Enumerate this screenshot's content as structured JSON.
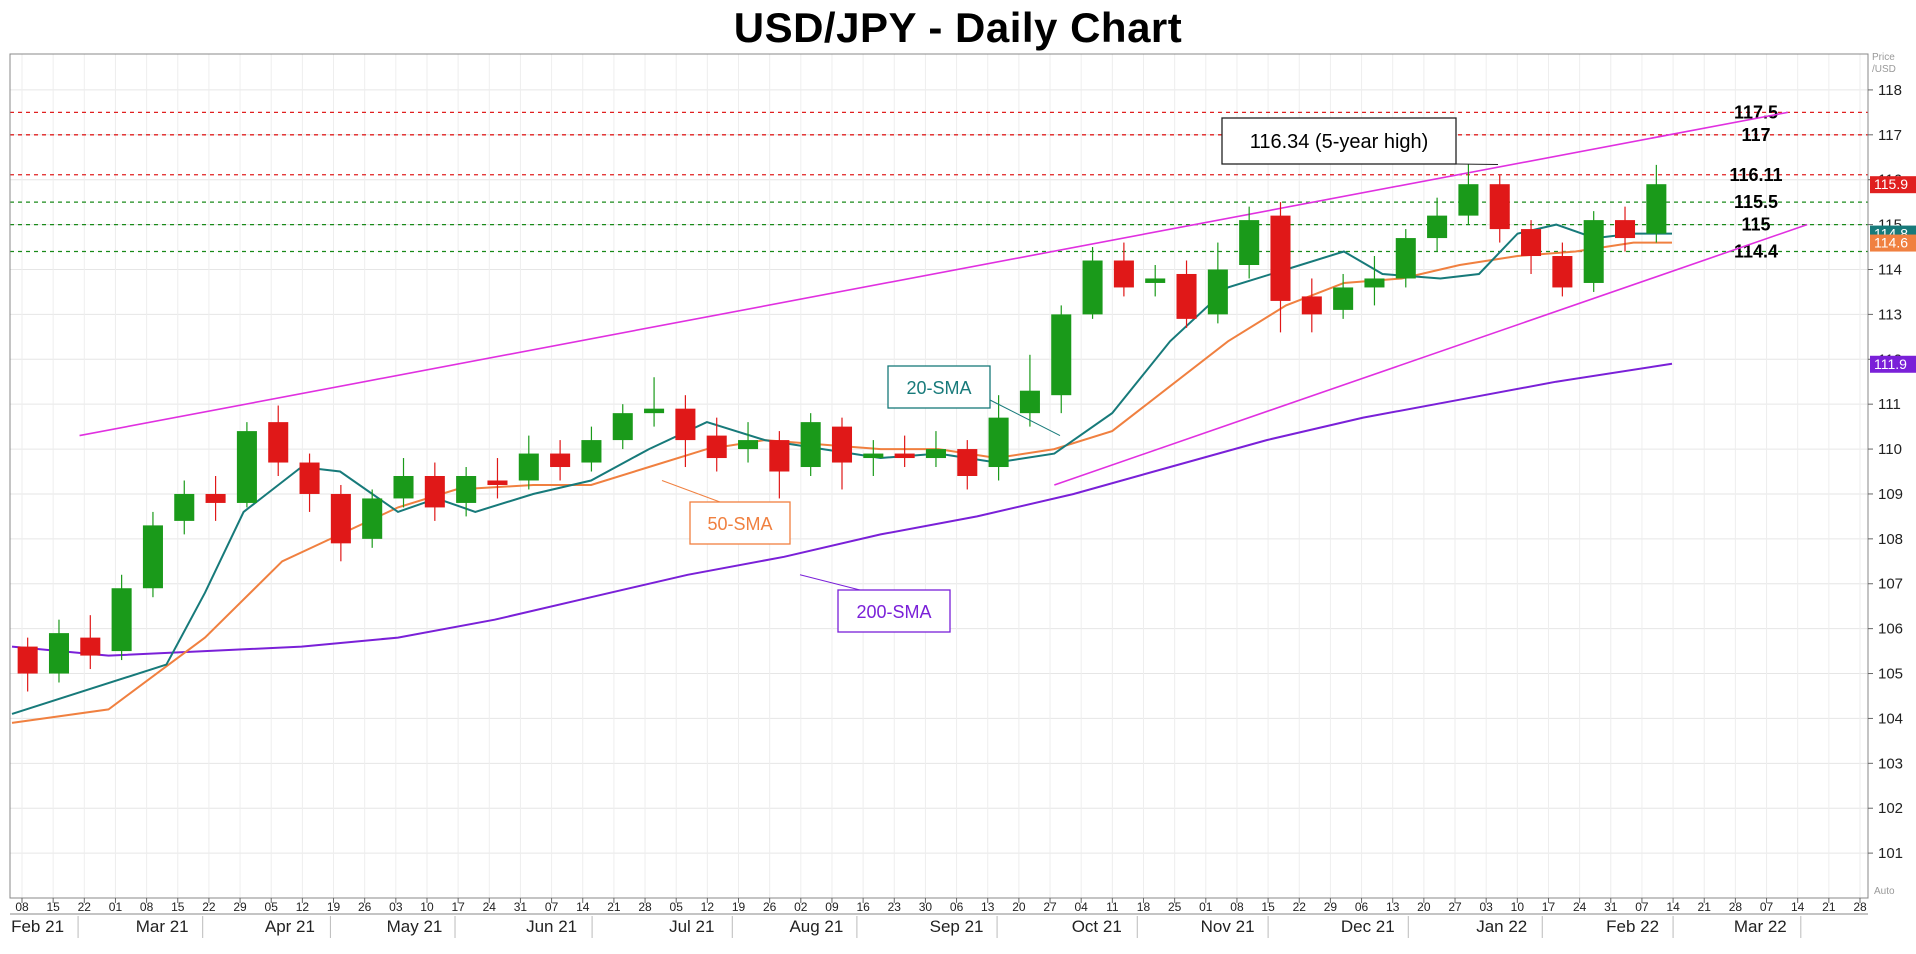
{
  "chart_data": {
    "type": "candlestick",
    "title": "USD/JPY - Daily Chart",
    "price_axis_label": [
      "Price",
      "/USD"
    ],
    "price_axis_footer": "Auto",
    "ylim": [
      100,
      118.8
    ],
    "y_ticks": [
      101,
      102,
      103,
      104,
      105,
      106,
      107,
      108,
      109,
      110,
      111,
      112,
      113,
      114,
      115,
      116,
      117,
      118
    ],
    "x_day_ticks": [
      "08",
      "15",
      "22",
      "01",
      "08",
      "15",
      "22",
      "29",
      "05",
      "12",
      "19",
      "26",
      "03",
      "10",
      "17",
      "24",
      "31",
      "07",
      "14",
      "21",
      "28",
      "05",
      "12",
      "19",
      "26",
      "02",
      "09",
      "16",
      "23",
      "30",
      "06",
      "13",
      "20",
      "27",
      "04",
      "11",
      "18",
      "25",
      "01",
      "08",
      "15",
      "22",
      "29",
      "06",
      "13",
      "20",
      "27",
      "03",
      "10",
      "17",
      "24",
      "31",
      "07",
      "14",
      "21",
      "28",
      "07",
      "14",
      "21",
      "28"
    ],
    "x_month_labels": [
      "Feb 21",
      "Mar 21",
      "Apr 21",
      "May 21",
      "Jun 21",
      "Jul 21",
      "Aug 21",
      "Sep 21",
      "Oct 21",
      "Nov 21",
      "Dec 21",
      "Jan 22",
      "Feb 22",
      "Mar 22"
    ],
    "candles_weekly_approx": [
      {
        "o": 105.6,
        "h": 105.8,
        "c": 105.0,
        "l": 104.6
      },
      {
        "o": 105.0,
        "h": 106.2,
        "c": 105.9,
        "l": 104.8
      },
      {
        "o": 105.8,
        "h": 106.3,
        "c": 105.4,
        "l": 105.1
      },
      {
        "o": 105.5,
        "h": 107.2,
        "c": 106.9,
        "l": 105.3
      },
      {
        "o": 106.9,
        "h": 108.6,
        "c": 108.3,
        "l": 106.7
      },
      {
        "o": 108.4,
        "h": 109.3,
        "c": 109.0,
        "l": 108.1
      },
      {
        "o": 109.0,
        "h": 109.4,
        "c": 108.8,
        "l": 108.4
      },
      {
        "o": 108.8,
        "h": 110.6,
        "c": 110.4,
        "l": 108.7
      },
      {
        "o": 110.6,
        "h": 110.97,
        "c": 109.7,
        "l": 109.4
      },
      {
        "o": 109.7,
        "h": 109.9,
        "c": 109.0,
        "l": 108.6
      },
      {
        "o": 109.0,
        "h": 109.2,
        "c": 107.9,
        "l": 107.5
      },
      {
        "o": 108.0,
        "h": 109.1,
        "c": 108.9,
        "l": 107.8
      },
      {
        "o": 108.9,
        "h": 109.8,
        "c": 109.4,
        "l": 108.7
      },
      {
        "o": 109.4,
        "h": 109.7,
        "c": 108.7,
        "l": 108.4
      },
      {
        "o": 108.8,
        "h": 109.6,
        "c": 109.4,
        "l": 108.5
      },
      {
        "o": 109.3,
        "h": 109.8,
        "c": 109.2,
        "l": 108.9
      },
      {
        "o": 109.3,
        "h": 110.3,
        "c": 109.9,
        "l": 109.1
      },
      {
        "o": 109.9,
        "h": 110.2,
        "c": 109.6,
        "l": 109.3
      },
      {
        "o": 109.7,
        "h": 110.5,
        "c": 110.2,
        "l": 109.5
      },
      {
        "o": 110.2,
        "h": 111.0,
        "c": 110.8,
        "l": 110.0
      },
      {
        "o": 110.8,
        "h": 111.6,
        "c": 110.9,
        "l": 110.5
      },
      {
        "o": 110.9,
        "h": 111.2,
        "c": 110.2,
        "l": 109.6
      },
      {
        "o": 110.3,
        "h": 110.7,
        "c": 109.8,
        "l": 109.5
      },
      {
        "o": 110.0,
        "h": 110.6,
        "c": 110.2,
        "l": 109.7
      },
      {
        "o": 110.2,
        "h": 110.4,
        "c": 109.5,
        "l": 108.9
      },
      {
        "o": 109.6,
        "h": 110.8,
        "c": 110.6,
        "l": 109.4
      },
      {
        "o": 110.5,
        "h": 110.7,
        "c": 109.7,
        "l": 109.1
      },
      {
        "o": 109.8,
        "h": 110.2,
        "c": 109.9,
        "l": 109.4
      },
      {
        "o": 109.9,
        "h": 110.3,
        "c": 109.8,
        "l": 109.6
      },
      {
        "o": 109.8,
        "h": 110.4,
        "c": 110.0,
        "l": 109.6
      },
      {
        "o": 110.0,
        "h": 110.2,
        "c": 109.4,
        "l": 109.1
      },
      {
        "o": 109.6,
        "h": 111.2,
        "c": 110.7,
        "l": 109.3
      },
      {
        "o": 110.8,
        "h": 112.1,
        "c": 111.3,
        "l": 110.5
      },
      {
        "o": 111.2,
        "h": 113.2,
        "c": 113.0,
        "l": 110.8
      },
      {
        "o": 113.0,
        "h": 114.5,
        "c": 114.2,
        "l": 112.9
      },
      {
        "o": 114.2,
        "h": 114.6,
        "c": 113.6,
        "l": 113.4
      },
      {
        "o": 113.7,
        "h": 114.1,
        "c": 113.8,
        "l": 113.4
      },
      {
        "o": 113.9,
        "h": 114.2,
        "c": 112.9,
        "l": 112.7
      },
      {
        "o": 113.0,
        "h": 114.6,
        "c": 114.0,
        "l": 112.8
      },
      {
        "o": 114.1,
        "h": 115.4,
        "c": 115.1,
        "l": 113.8
      },
      {
        "o": 115.2,
        "h": 115.5,
        "c": 113.3,
        "l": 112.6
      },
      {
        "o": 113.4,
        "h": 113.8,
        "c": 113.0,
        "l": 112.6
      },
      {
        "o": 113.1,
        "h": 113.9,
        "c": 113.6,
        "l": 112.9
      },
      {
        "o": 113.6,
        "h": 114.3,
        "c": 113.8,
        "l": 113.2
      },
      {
        "o": 113.8,
        "h": 114.9,
        "c": 114.7,
        "l": 113.6
      },
      {
        "o": 114.7,
        "h": 115.6,
        "c": 115.2,
        "l": 114.4
      },
      {
        "o": 115.2,
        "h": 116.34,
        "c": 115.9,
        "l": 115.0
      },
      {
        "o": 115.9,
        "h": 116.1,
        "c": 114.9,
        "l": 114.6
      },
      {
        "o": 114.9,
        "h": 115.1,
        "c": 114.3,
        "l": 113.9
      },
      {
        "o": 114.3,
        "h": 114.6,
        "c": 113.6,
        "l": 113.4
      },
      {
        "o": 113.7,
        "h": 115.3,
        "c": 115.1,
        "l": 113.5
      },
      {
        "o": 115.1,
        "h": 115.4,
        "c": 114.7,
        "l": 114.4
      },
      {
        "o": 114.8,
        "h": 116.33,
        "c": 115.9,
        "l": 114.6
      }
    ],
    "sma20": [
      [
        0,
        104.1
      ],
      [
        0.08,
        105.2
      ],
      [
        0.1,
        106.8
      ],
      [
        0.12,
        108.6
      ],
      [
        0.15,
        109.6
      ],
      [
        0.17,
        109.5
      ],
      [
        0.2,
        108.6
      ],
      [
        0.22,
        108.9
      ],
      [
        0.24,
        108.6
      ],
      [
        0.27,
        109.0
      ],
      [
        0.3,
        109.3
      ],
      [
        0.33,
        110.0
      ],
      [
        0.36,
        110.6
      ],
      [
        0.39,
        110.2
      ],
      [
        0.42,
        110.0
      ],
      [
        0.45,
        109.8
      ],
      [
        0.48,
        109.9
      ],
      [
        0.51,
        109.7
      ],
      [
        0.54,
        109.9
      ],
      [
        0.57,
        110.8
      ],
      [
        0.6,
        112.4
      ],
      [
        0.63,
        113.6
      ],
      [
        0.66,
        114.0
      ],
      [
        0.69,
        114.4
      ],
      [
        0.71,
        113.9
      ],
      [
        0.74,
        113.8
      ],
      [
        0.76,
        113.9
      ],
      [
        0.78,
        114.8
      ],
      [
        0.8,
        115.0
      ],
      [
        0.82,
        114.7
      ],
      [
        0.84,
        114.8
      ],
      [
        0.86,
        114.8
      ]
    ],
    "sma50": [
      [
        0,
        103.9
      ],
      [
        0.05,
        104.2
      ],
      [
        0.1,
        105.8
      ],
      [
        0.14,
        107.5
      ],
      [
        0.17,
        108.1
      ],
      [
        0.2,
        108.7
      ],
      [
        0.23,
        109.1
      ],
      [
        0.27,
        109.2
      ],
      [
        0.3,
        109.2
      ],
      [
        0.33,
        109.6
      ],
      [
        0.36,
        110.0
      ],
      [
        0.39,
        110.2
      ],
      [
        0.42,
        110.1
      ],
      [
        0.45,
        110.0
      ],
      [
        0.48,
        110.0
      ],
      [
        0.51,
        109.8
      ],
      [
        0.54,
        110.0
      ],
      [
        0.57,
        110.4
      ],
      [
        0.6,
        111.4
      ],
      [
        0.63,
        112.4
      ],
      [
        0.66,
        113.2
      ],
      [
        0.69,
        113.7
      ],
      [
        0.72,
        113.8
      ],
      [
        0.75,
        114.1
      ],
      [
        0.78,
        114.3
      ],
      [
        0.81,
        114.4
      ],
      [
        0.84,
        114.6
      ],
      [
        0.86,
        114.6
      ]
    ],
    "sma200": [
      [
        0,
        105.6
      ],
      [
        0.05,
        105.4
      ],
      [
        0.1,
        105.5
      ],
      [
        0.15,
        105.6
      ],
      [
        0.2,
        105.8
      ],
      [
        0.25,
        106.2
      ],
      [
        0.3,
        106.7
      ],
      [
        0.35,
        107.2
      ],
      [
        0.4,
        107.6
      ],
      [
        0.45,
        108.1
      ],
      [
        0.5,
        108.5
      ],
      [
        0.55,
        109.0
      ],
      [
        0.6,
        109.6
      ],
      [
        0.65,
        110.2
      ],
      [
        0.7,
        110.7
      ],
      [
        0.75,
        111.1
      ],
      [
        0.8,
        111.5
      ],
      [
        0.86,
        111.9
      ]
    ],
    "horizontal_levels": [
      {
        "value": 117.5,
        "label": "117.5",
        "color": "#e02020"
      },
      {
        "value": 117,
        "label": "117",
        "color": "#e02020"
      },
      {
        "value": 116.11,
        "label": "116.11",
        "color": "#e02020"
      },
      {
        "value": 115.5,
        "label": "115.5",
        "color": "#1a8a1a"
      },
      {
        "value": 115,
        "label": "115",
        "color": "#1a8a1a"
      },
      {
        "value": 114.4,
        "label": "114.4",
        "color": "#1a8a1a"
      }
    ],
    "price_tags": [
      {
        "value": 115.9,
        "label": "115.9",
        "color": "#e02020"
      },
      {
        "value": 114.8,
        "label": "114.8",
        "color": "#177a7a"
      },
      {
        "value": 114.6,
        "label": "114.6",
        "color": "#f08040"
      },
      {
        "value": 111.9,
        "label": "111.9",
        "color": "#7a20d8"
      }
    ],
    "annotations": [
      {
        "text": "116.34 (5-year high)",
        "color": "#000000"
      },
      {
        "text": "20-SMA",
        "color": "#177a7a"
      },
      {
        "text": "50-SMA",
        "color": "#f08040"
      },
      {
        "text": "200-SMA",
        "color": "#7a20d8"
      }
    ],
    "colors": {
      "bull": "#1a9a1a",
      "bear": "#e01818",
      "sma20": "#177a7a",
      "sma50": "#f08040",
      "sma200": "#7a20d8",
      "channel": "#e030e0"
    }
  }
}
